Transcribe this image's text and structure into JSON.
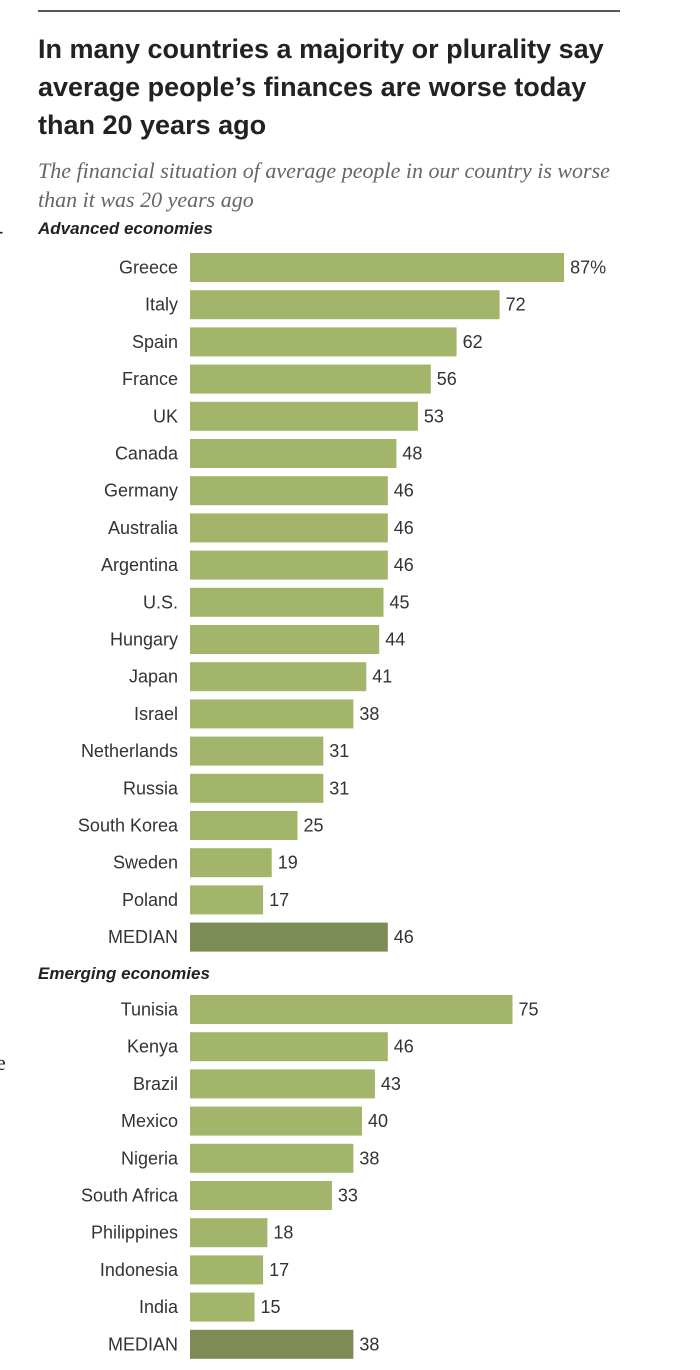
{
  "title": "In many countries a majority or plurality say average people’s finances are worse today than 20 years ago",
  "subtitle": "The financial situation of average people in our country is worse than it was 20 years ago",
  "edge_fragments": {
    "upper": "-",
    "lower": "e"
  },
  "colors": {
    "bar": "#a2b56a",
    "median_bar": "#7d8c55",
    "text": "#333333",
    "rule": "#555555"
  },
  "chart_data": {
    "type": "bar",
    "orientation": "horizontal",
    "title": "In many countries a majority or plurality say average people’s finances are worse today than 20 years ago",
    "subtitle": "The financial situation of average people in our country is worse than it was 20 years ago",
    "unit": "%",
    "xlim": [
      0,
      100
    ],
    "grid": false,
    "groups": [
      {
        "name": "Advanced economies",
        "categories": [
          "Greece",
          "Italy",
          "Spain",
          "France",
          "UK",
          "Canada",
          "Germany",
          "Australia",
          "Argentina",
          "U.S.",
          "Hungary",
          "Japan",
          "Israel",
          "Netherlands",
          "Russia",
          "South Korea",
          "Sweden",
          "Poland",
          "MEDIAN"
        ],
        "values": [
          87,
          72,
          62,
          56,
          53,
          48,
          46,
          46,
          46,
          45,
          44,
          41,
          38,
          31,
          31,
          25,
          19,
          17,
          46
        ],
        "labels": [
          "87%",
          "72",
          "62",
          "56",
          "53",
          "48",
          "46",
          "46",
          "46",
          "45",
          "44",
          "41",
          "38",
          "31",
          "31",
          "25",
          "19",
          "17",
          "46"
        ]
      },
      {
        "name": "Emerging economies",
        "categories": [
          "Tunisia",
          "Kenya",
          "Brazil",
          "Mexico",
          "Nigeria",
          "South Africa",
          "Philippines",
          "Indonesia",
          "India",
          "MEDIAN"
        ],
        "values": [
          75,
          46,
          43,
          40,
          38,
          33,
          18,
          17,
          15,
          38
        ],
        "labels": [
          "75",
          "46",
          "43",
          "40",
          "38",
          "33",
          "18",
          "17",
          "15",
          "38"
        ]
      }
    ]
  }
}
